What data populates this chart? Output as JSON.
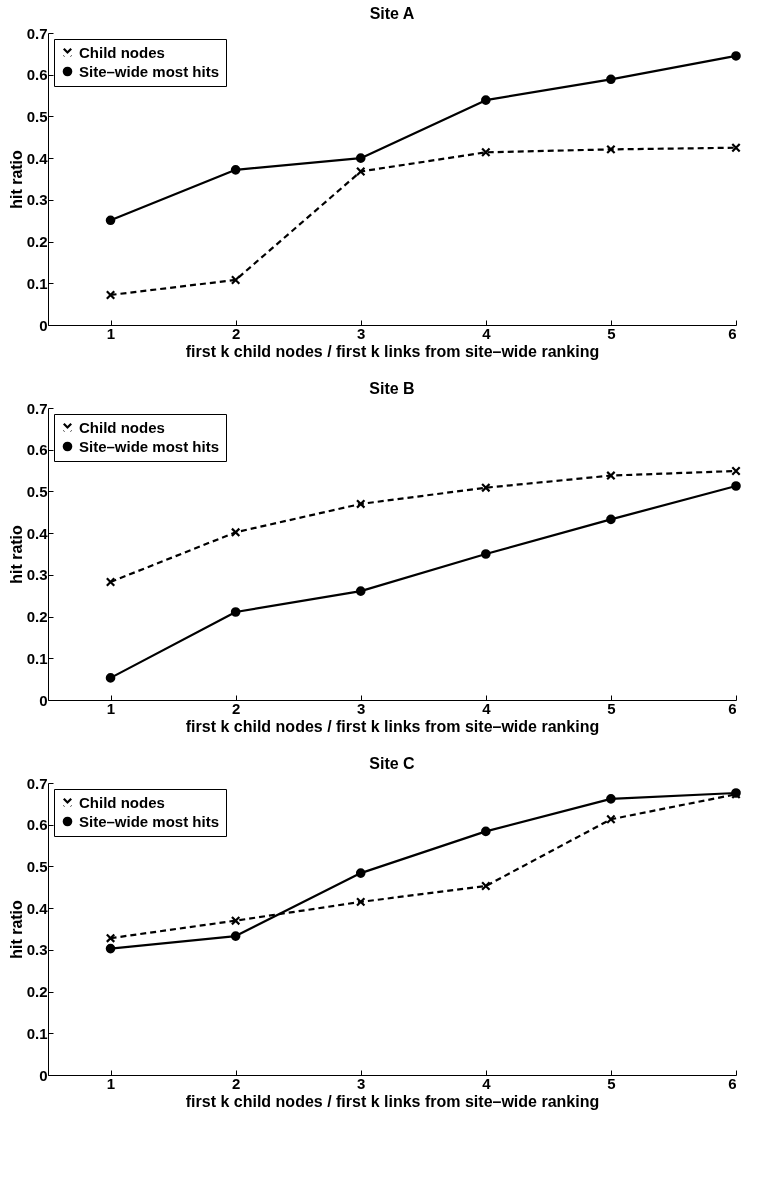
{
  "chart_data": [
    {
      "type": "line",
      "title": "Site A",
      "xlabel": "first k child nodes / first k links from site–wide ranking",
      "ylabel": "hit ratio",
      "x": [
        1,
        2,
        3,
        4,
        5,
        6
      ],
      "xlim": [
        0.5,
        6
      ],
      "xticks": [
        1,
        2,
        3,
        4,
        5,
        6
      ],
      "ylim": [
        0,
        0.7
      ],
      "yticks": [
        0,
        0.1,
        0.2,
        0.3,
        0.4,
        0.5,
        0.6,
        0.7
      ],
      "grid": false,
      "legend": "top left",
      "series": [
        {
          "name": "Child nodes",
          "color": "#000000",
          "marker": "cross",
          "line_style": "dashed",
          "values": [
            0.072,
            0.108,
            0.368,
            0.414,
            0.421,
            0.425
          ]
        },
        {
          "name": "Site–wide most hits",
          "color": "#000000",
          "marker": "circle",
          "line_style": "solid",
          "values": [
            0.251,
            0.372,
            0.4,
            0.539,
            0.589,
            0.645
          ]
        }
      ]
    },
    {
      "type": "line",
      "title": "Site B",
      "xlabel": "first k child nodes / first k links from site–wide ranking",
      "ylabel": "hit ratio",
      "x": [
        1,
        2,
        3,
        4,
        5,
        6
      ],
      "xlim": [
        0.5,
        6
      ],
      "xticks": [
        1,
        2,
        3,
        4,
        5,
        6
      ],
      "ylim": [
        0,
        0.7
      ],
      "yticks": [
        0,
        0.1,
        0.2,
        0.3,
        0.4,
        0.5,
        0.6,
        0.7
      ],
      "grid": false,
      "legend": "top left",
      "series": [
        {
          "name": "Child nodes",
          "color": "#000000",
          "marker": "cross",
          "line_style": "dashed",
          "values": [
            0.283,
            0.402,
            0.47,
            0.509,
            0.538,
            0.549
          ]
        },
        {
          "name": "Site–wide most hits",
          "color": "#000000",
          "marker": "circle",
          "line_style": "solid",
          "values": [
            0.053,
            0.211,
            0.261,
            0.35,
            0.433,
            0.513
          ]
        }
      ]
    },
    {
      "type": "line",
      "title": "Site C",
      "xlabel": "first k child nodes / first k links from site–wide ranking",
      "ylabel": "hit ratio",
      "x": [
        1,
        2,
        3,
        4,
        5,
        6
      ],
      "xlim": [
        0.5,
        6
      ],
      "xticks": [
        1,
        2,
        3,
        4,
        5,
        6
      ],
      "ylim": [
        0,
        0.7
      ],
      "yticks": [
        0,
        0.1,
        0.2,
        0.3,
        0.4,
        0.5,
        0.6,
        0.7
      ],
      "grid": false,
      "legend": "top left",
      "series": [
        {
          "name": "Child nodes",
          "color": "#000000",
          "marker": "cross",
          "line_style": "dashed",
          "values": [
            0.328,
            0.37,
            0.415,
            0.453,
            0.613,
            0.673
          ]
        },
        {
          "name": "Site–wide most hits",
          "color": "#000000",
          "marker": "circle",
          "line_style": "solid",
          "values": [
            0.303,
            0.333,
            0.484,
            0.584,
            0.662,
            0.676
          ]
        }
      ]
    }
  ]
}
